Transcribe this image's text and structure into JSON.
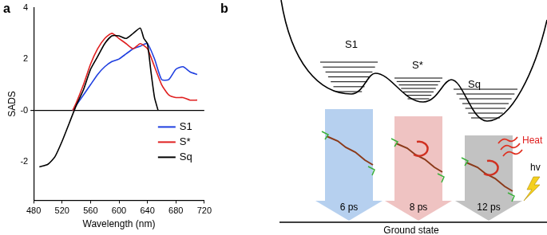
{
  "chart_data": {
    "type": "line",
    "panel_label": "a",
    "x_label": "Wavelength (nm)",
    "y_label": "SADS",
    "xlim": [
      480,
      720
    ],
    "xticks": [
      480,
      520,
      560,
      600,
      640,
      680,
      720
    ],
    "ylim": [
      -3.5,
      4
    ],
    "yticks": [
      -2,
      {
        "value": 0,
        "label": "-0"
      },
      2,
      4
    ],
    "legend": "lower right",
    "series": [
      {
        "name": "S1",
        "color": "#1f3fe0",
        "x": [
          535,
          540,
          550,
          560,
          570,
          580,
          590,
          600,
          610,
          620,
          630,
          640,
          650,
          660,
          670,
          680,
          690,
          700,
          710
        ],
        "values": [
          0,
          0.2,
          0.6,
          1.0,
          1.4,
          1.7,
          1.9,
          2.0,
          2.2,
          2.4,
          2.5,
          2.6,
          2.0,
          1.2,
          1.2,
          1.6,
          1.7,
          1.5,
          1.4
        ]
      },
      {
        "name": "S*",
        "color": "#e02020",
        "x": [
          535,
          540,
          550,
          560,
          570,
          580,
          590,
          600,
          610,
          620,
          630,
          640,
          650,
          660,
          670,
          680,
          690,
          700,
          710
        ],
        "values": [
          0,
          0.3,
          1.0,
          1.8,
          2.4,
          2.8,
          3.0,
          2.8,
          2.6,
          2.4,
          2.6,
          2.4,
          1.7,
          1.0,
          0.6,
          0.5,
          0.5,
          0.4,
          0.4
        ]
      },
      {
        "name": "Sq",
        "color": "#000000",
        "x": [
          488,
          500,
          510,
          520,
          530,
          540,
          550,
          560,
          570,
          580,
          590,
          600,
          610,
          620,
          630,
          635,
          640,
          645,
          650,
          655
        ],
        "values": [
          -2.2,
          -2.1,
          -1.8,
          -1.2,
          -0.5,
          0.2,
          0.8,
          1.6,
          2.1,
          2.6,
          2.9,
          2.9,
          2.8,
          3.0,
          3.2,
          2.8,
          2.6,
          1.5,
          0.5,
          0
        ]
      }
    ]
  },
  "diagram": {
    "panel_label": "b",
    "states": [
      {
        "label": "S1",
        "lifetime": "6 ps"
      },
      {
        "label": "S*",
        "lifetime": "8 ps"
      },
      {
        "label": "Sq",
        "lifetime": "12 ps"
      }
    ],
    "heat": "Heat",
    "photon": "hv",
    "ground": "Ground state"
  }
}
